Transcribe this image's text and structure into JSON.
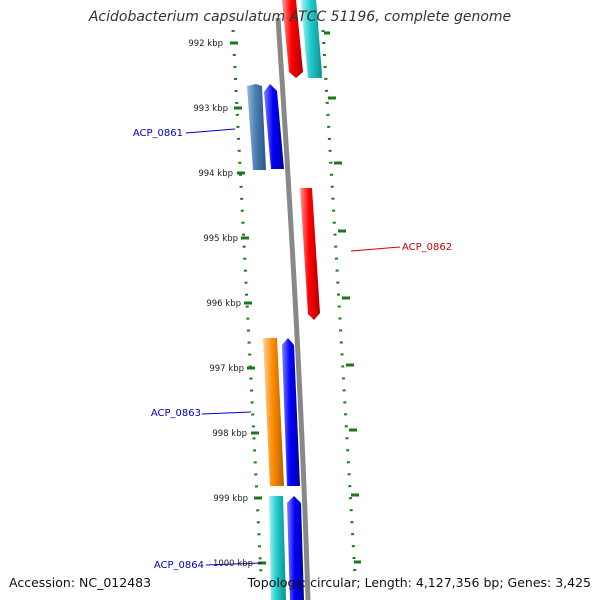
{
  "title": "Acidobacterium capsulatum ATCC 51196, complete genome",
  "accession": "Accession: NC_012483",
  "summary": "Topology: circular; Length: 4,127,356 bp; Genes: 3,425",
  "ruler_labels": [
    "992 kbp",
    "993 kbp",
    "994 kbp",
    "995 kbp",
    "996 kbp",
    "997 kbp",
    "998 kbp",
    "999 kbp",
    "1000 kbp"
  ],
  "gene_labels": [
    {
      "text": "ACP_0861",
      "color": "#0000cc"
    },
    {
      "text": "ACP_0862",
      "color": "#cc0000"
    },
    {
      "text": "ACP_0863",
      "color": "#0000cc"
    },
    {
      "text": "ACP_0864",
      "color": "#0000cc"
    }
  ],
  "colors": {
    "backbone": "#888888",
    "dots": "#1a7a1a",
    "red": "#ff0000",
    "cyan": "#22cccc",
    "steelblue": "#4a7fb5",
    "blue": "#0000ff",
    "orange": "#ff8c00"
  }
}
